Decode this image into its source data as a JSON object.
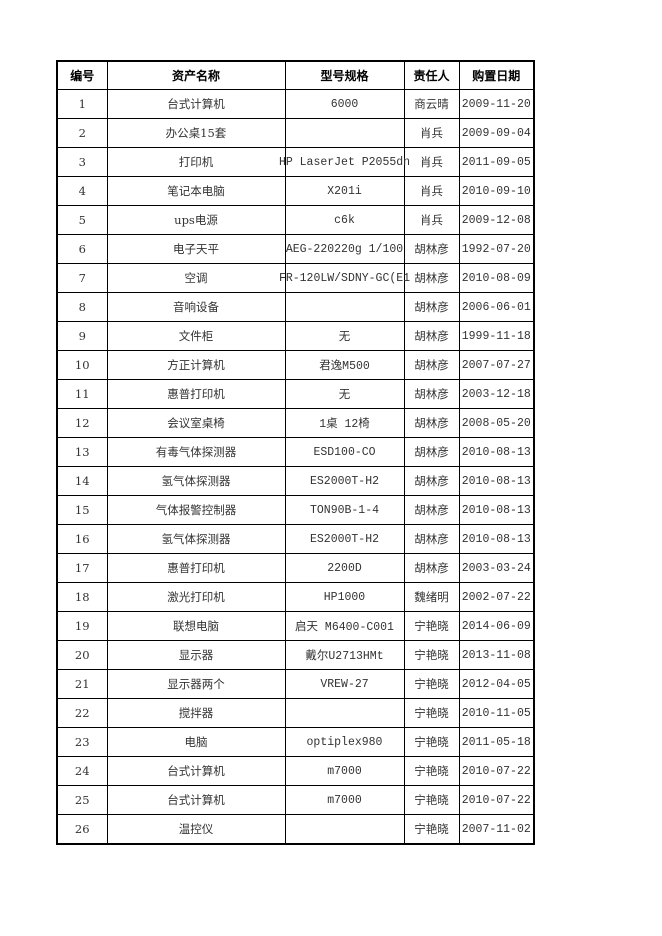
{
  "table": {
    "headers": [
      "编号",
      "资产名称",
      "型号规格",
      "责任人",
      "购置日期"
    ],
    "rows": [
      [
        "1",
        "台式计算机",
        "6000",
        "商云晴",
        "2009-11-20"
      ],
      [
        "2",
        "办公桌15套",
        "",
        "肖兵",
        "2009-09-04"
      ],
      [
        "3",
        "打印机",
        "HP LaserJet P2055dn",
        "肖兵",
        "2011-09-05"
      ],
      [
        "4",
        "笔记本电脑",
        "X201i",
        "肖兵",
        "2010-09-10"
      ],
      [
        "5",
        "ups电源",
        "c6k",
        "肖兵",
        "2009-12-08"
      ],
      [
        "6",
        "电子天平",
        "AEG-220220g 1/100",
        "胡林彦",
        "1992-07-20"
      ],
      [
        "7",
        "空调",
        "FR-120LW/SDNY-GC(E1",
        "胡林彦",
        "2010-08-09"
      ],
      [
        "8",
        "音响设备",
        "",
        "胡林彦",
        "2006-06-01"
      ],
      [
        "9",
        "文件柜",
        "无",
        "胡林彦",
        "1999-11-18"
      ],
      [
        "10",
        "方正计算机",
        "君逸M500",
        "胡林彦",
        "2007-07-27"
      ],
      [
        "11",
        "惠普打印机",
        "无",
        "胡林彦",
        "2003-12-18"
      ],
      [
        "12",
        "会议室桌椅",
        "1桌 12椅",
        "胡林彦",
        "2008-05-20"
      ],
      [
        "13",
        "有毒气体探测器",
        "ESD100-CO",
        "胡林彦",
        "2010-08-13"
      ],
      [
        "14",
        "氢气体探测器",
        "ES2000T-H2",
        "胡林彦",
        "2010-08-13"
      ],
      [
        "15",
        "气体报警控制器",
        "TON90B-1-4",
        "胡林彦",
        "2010-08-13"
      ],
      [
        "16",
        "氢气体探测器",
        "ES2000T-H2",
        "胡林彦",
        "2010-08-13"
      ],
      [
        "17",
        "惠普打印机",
        "2200D",
        "胡林彦",
        "2003-03-24"
      ],
      [
        "18",
        "激光打印机",
        "HP1000",
        "魏绪明",
        "2002-07-22"
      ],
      [
        "19",
        "联想电脑",
        "启天 M6400-C001",
        "宁艳晓",
        "2014-06-09"
      ],
      [
        "20",
        "显示器",
        "戴尔U2713HMt",
        "宁艳晓",
        "2013-11-08"
      ],
      [
        "21",
        "显示器两个",
        "VREW-27",
        "宁艳晓",
        "2012-04-05"
      ],
      [
        "22",
        "搅拌器",
        "",
        "宁艳晓",
        "2010-11-05"
      ],
      [
        "23",
        "电脑",
        "optiplex980",
        "宁艳晓",
        "2011-05-18"
      ],
      [
        "24",
        "台式计算机",
        "m7000",
        "宁艳晓",
        "2010-07-22"
      ],
      [
        "25",
        "台式计算机",
        "m7000",
        "宁艳晓",
        "2010-07-22"
      ],
      [
        "26",
        "温控仪",
        "",
        "宁艳晓",
        "2007-11-02"
      ]
    ]
  }
}
